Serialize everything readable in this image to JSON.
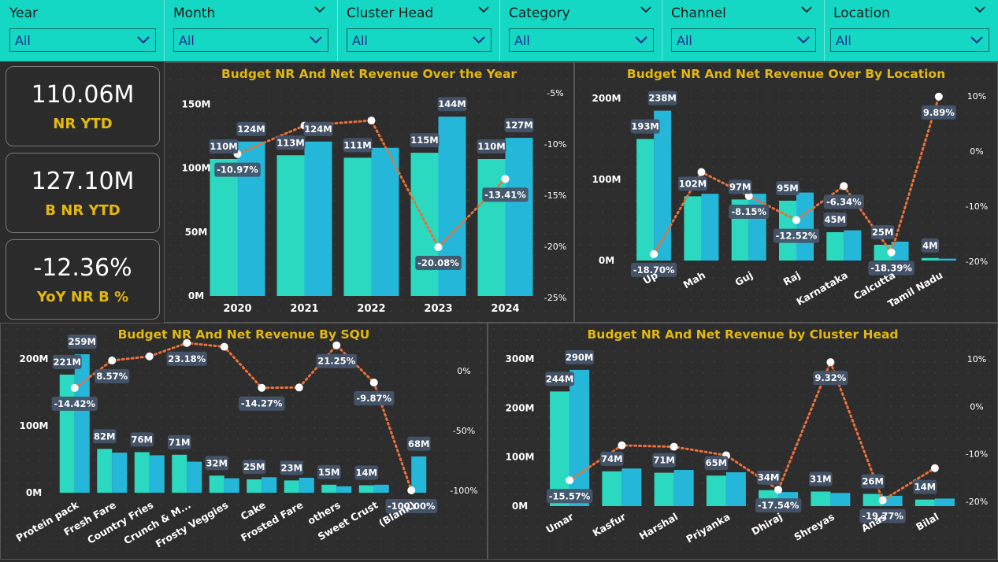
{
  "filters": [
    {
      "label": "Year",
      "value": "All"
    },
    {
      "label": "Month",
      "value": "All"
    },
    {
      "label": "Cluster Head",
      "value": "All"
    },
    {
      "label": "Category",
      "value": "All"
    },
    {
      "label": "Channel",
      "value": "All"
    },
    {
      "label": "Location",
      "value": "All"
    }
  ],
  "kpis": [
    {
      "value": "110.06M",
      "label": "NR YTD"
    },
    {
      "value": "127.10M",
      "label": "B NR YTD"
    },
    {
      "value": "-12.36%",
      "label": "YoY NR B %"
    }
  ],
  "colors": {
    "nr": "#2ad9c0",
    "budget": "#25b7d9",
    "line": "#e8703a",
    "title": "#e3b80f",
    "label_bg": "#44546a"
  },
  "chart_data": [
    {
      "type": "bar",
      "title": "Budget NR And Net Revenue Over the Year",
      "categories": [
        "2020",
        "2021",
        "2022",
        "2023",
        "2024"
      ],
      "series": [
        {
          "values": [
            110,
            113,
            111,
            115,
            110
          ],
          "labels": [
            "110M",
            "113M",
            "111M",
            "115M",
            "110M"
          ]
        },
        {
          "values": [
            124,
            124,
            119,
            144,
            127
          ],
          "labels": [
            "124M",
            "124M",
            "",
            "144M",
            "127M"
          ]
        }
      ],
      "line": {
        "values": [
          -10.97,
          -8.2,
          -7.7,
          -20.08,
          -13.41
        ],
        "labels": [
          "-10.97%",
          "",
          "",
          "-20.08%",
          "-13.41%"
        ]
      },
      "y_ticks": [
        "0M",
        "50M",
        "100M",
        "150M"
      ],
      "y2_ticks": [
        "-5%",
        "-10%",
        "-15%",
        "-20%",
        "-25%"
      ],
      "ylim": [
        0,
        165
      ],
      "y2lim": [
        -25,
        -5
      ]
    },
    {
      "type": "bar",
      "title": "Budget NR And Net Revenue Over By Location",
      "categories": [
        "Up",
        "Mah",
        "Guj",
        "Raj",
        "Karnataka",
        "Calcutta",
        "Tamil Nadu"
      ],
      "series": [
        {
          "values": [
            193,
            102,
            97,
            95,
            45,
            25,
            4
          ],
          "labels": [
            "193M",
            "102M",
            "97M",
            "95M",
            "45M",
            "25M",
            "4M"
          ]
        },
        {
          "values": [
            238,
            106,
            106,
            108,
            48,
            30,
            3
          ],
          "labels": [
            "238M",
            "",
            "",
            "",
            "",
            "",
            ""
          ]
        }
      ],
      "line": {
        "values": [
          -18.7,
          -3.8,
          -8.15,
          -12.52,
          -6.34,
          -18.39,
          9.89
        ],
        "labels": [
          "-18.70%",
          "",
          "-8.15%",
          "-12.52%",
          "-6.34%",
          "-18.39%",
          "9.89%"
        ]
      },
      "y_ticks": [
        "0M",
        "100M",
        "200M"
      ],
      "y2_ticks": [
        "10%",
        "0%",
        "-10%",
        "-20%"
      ],
      "ylim": [
        0,
        270
      ],
      "y2lim": [
        -20,
        10
      ]
    },
    {
      "type": "bar",
      "title": "Budget NR And Net Revenue By SQU",
      "categories": [
        "Protein pack",
        "Fresh Fare",
        "Country Fries",
        "Crunch & M...",
        "Frosty Veggies",
        "Cake",
        "Frosted Fare",
        "others",
        "Sweet Crust",
        "(Blank)"
      ],
      "series": [
        {
          "values": [
            221,
            82,
            76,
            71,
            32,
            25,
            23,
            15,
            14,
            0
          ],
          "labels": [
            "221M",
            "82M",
            "76M",
            "71M",
            "32M",
            "25M",
            "23M",
            "15M",
            "14M",
            ""
          ]
        },
        {
          "values": [
            259,
            75,
            70,
            58,
            27,
            29,
            28,
            12,
            15,
            68
          ],
          "labels": [
            "259M",
            "",
            "",
            "",
            "",
            "",
            "",
            "",
            "",
            "68M"
          ]
        }
      ],
      "line": {
        "values": [
          -14.42,
          8.57,
          12,
          23.18,
          20,
          -14.27,
          -14,
          21.25,
          -9.87,
          -100
        ],
        "labels": [
          "-14.42%",
          "8.57%",
          "",
          "23.18%",
          "",
          "-14.27%",
          "",
          "21.25%",
          "-9.87%",
          "-100.00%"
        ]
      },
      "y_ticks": [
        "0M",
        "100M",
        "200M"
      ],
      "y2_ticks": [
        "0%",
        "-50%",
        "-100%"
      ],
      "ylim": [
        0,
        265
      ],
      "y2lim": [
        -100,
        0
      ]
    },
    {
      "type": "bar",
      "title": "Budget NR And Net Revenue by Cluster Head",
      "categories": [
        "Umar",
        "Kasfur",
        "Harshal",
        "Priyanka",
        "Dhiraj",
        "Shreyas",
        "Anas",
        "Bilal"
      ],
      "series": [
        {
          "values": [
            244,
            74,
            71,
            65,
            34,
            31,
            26,
            14
          ],
          "labels": [
            "244M",
            "74M",
            "71M",
            "65M",
            "34M",
            "31M",
            "26M",
            "14M"
          ]
        },
        {
          "values": [
            290,
            80,
            77,
            72,
            30,
            28,
            22,
            16
          ],
          "labels": [
            "290M",
            "",
            "",
            "",
            "",
            "",
            "",
            ""
          ]
        }
      ],
      "line": {
        "values": [
          -15.57,
          -8.2,
          -8.5,
          -10.3,
          -17.54,
          9.32,
          -19.77,
          -13
        ],
        "labels": [
          "-15.57%",
          "",
          "",
          "",
          "-17.54%",
          "9.32%",
          "-19.77%",
          ""
        ]
      },
      "y_ticks": [
        "0M",
        "100M",
        "200M",
        "300M"
      ],
      "y2_ticks": [
        "10%",
        "0%",
        "-10%",
        "-20%"
      ],
      "ylim": [
        0,
        330
      ],
      "y2lim": [
        -20,
        10
      ]
    }
  ]
}
